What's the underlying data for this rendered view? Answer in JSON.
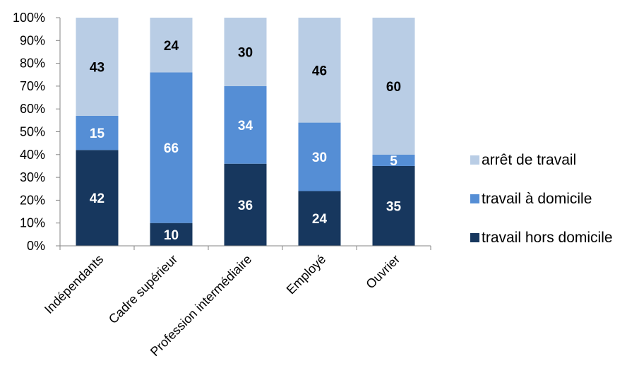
{
  "chart_data": {
    "type": "bar",
    "stacked": true,
    "percent": true,
    "categories": [
      "Indépendants",
      "Cadre supérieur",
      "Profession intermédiaire",
      "Employé",
      "Ouvrier"
    ],
    "series": [
      {
        "name": "travail hors domicile",
        "values": [
          42,
          10,
          36,
          24,
          35
        ],
        "color": "#17375E",
        "label_color": "#FFFFFF"
      },
      {
        "name": "travail à domicile",
        "values": [
          15,
          66,
          34,
          30,
          5
        ],
        "color": "#558ED5",
        "label_color": "#FFFFFF"
      },
      {
        "name": "arrêt de travail",
        "values": [
          43,
          24,
          30,
          46,
          60
        ],
        "color": "#B9CDE5",
        "label_color": "#000000"
      }
    ],
    "y_ticks": [
      "0%",
      "10%",
      "20%",
      "30%",
      "40%",
      "50%",
      "60%",
      "70%",
      "80%",
      "90%",
      "100%"
    ],
    "ylim": [
      0,
      100
    ],
    "grid": false,
    "legend_position": "right",
    "title": "",
    "xlabel": "",
    "ylabel": ""
  }
}
